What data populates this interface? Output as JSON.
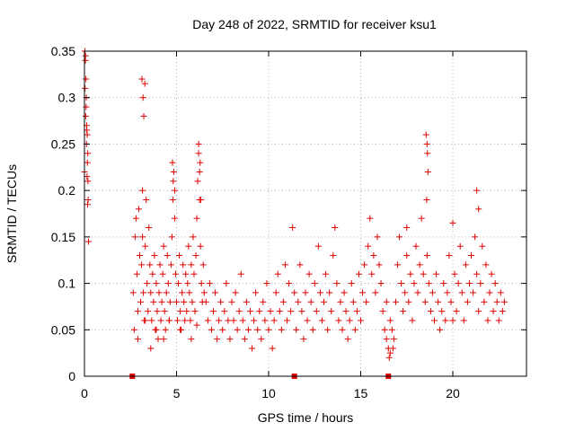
{
  "chart_data": {
    "type": "scatter",
    "title": "Day 248 of 2022, SRMTID for receiver ksu1",
    "xlabel": "GPS time / hours",
    "ylabel": "SRMTID / TECUs",
    "xlim": [
      0,
      24
    ],
    "ylim": [
      0,
      0.35
    ],
    "xticks": [
      0,
      5,
      10,
      15,
      20
    ],
    "xtick_labels": [
      "0",
      "5",
      "10",
      "15",
      "20"
    ],
    "yticks": [
      0,
      0.05,
      0.1,
      0.15,
      0.2,
      0.25,
      0.3,
      0.35
    ],
    "ytick_labels": [
      "0",
      "0.05",
      "0.1",
      "0.15",
      "0.2",
      "0.25",
      "0.3",
      "0.35"
    ],
    "grid": true,
    "marker": "plus",
    "color": "#e00000",
    "series": [
      {
        "name": "SRMTID",
        "x": [
          0.0,
          0.02,
          0.05,
          0.08,
          0.1,
          0.12,
          0.15,
          0.18,
          0.2,
          0.22,
          0.03,
          0.07,
          0.11,
          0.14,
          0.17,
          0.06,
          0.09,
          0.13,
          0.16,
          0.19,
          2.65,
          2.7,
          2.75,
          2.8,
          2.85,
          2.9,
          2.95,
          3.0,
          3.05,
          3.1,
          3.15,
          3.2,
          3.25,
          3.3,
          3.35,
          3.4,
          3.45,
          3.5,
          3.55,
          3.6,
          3.65,
          3.7,
          3.75,
          3.8,
          3.85,
          3.9,
          3.95,
          4.0,
          4.05,
          4.1,
          4.15,
          4.2,
          4.25,
          4.3,
          4.35,
          4.4,
          4.45,
          4.5,
          4.55,
          4.6,
          4.65,
          4.7,
          4.75,
          4.8,
          4.85,
          4.9,
          4.95,
          5.0,
          5.05,
          5.1,
          5.15,
          5.2,
          5.25,
          5.3,
          5.35,
          5.4,
          5.45,
          5.5,
          5.55,
          5.6,
          5.65,
          5.7,
          5.75,
          5.8,
          5.85,
          5.9,
          5.95,
          6.0,
          6.05,
          6.1,
          6.15,
          6.2,
          6.25,
          6.3,
          6.35,
          6.4,
          6.45,
          6.5,
          3.12,
          3.18,
          3.22,
          3.28,
          3.15,
          4.78,
          4.82,
          4.9,
          6.2,
          6.28,
          6.32,
          6.25,
          2.9,
          3.3,
          3.6,
          3.9,
          4.3,
          4.6,
          5.2,
          5.8,
          6.1
        ],
        "y": [
          0.22,
          0.35,
          0.34,
          0.32,
          0.3,
          0.27,
          0.26,
          0.24,
          0.19,
          0.145,
          0.31,
          0.28,
          0.25,
          0.215,
          0.185,
          0.345,
          0.29,
          0.265,
          0.23,
          0.21,
          0.09,
          0.05,
          0.15,
          0.17,
          0.11,
          0.07,
          0.18,
          0.13,
          0.08,
          0.12,
          0.15,
          0.09,
          0.06,
          0.14,
          0.19,
          0.1,
          0.07,
          0.16,
          0.12,
          0.09,
          0.06,
          0.11,
          0.08,
          0.13,
          0.05,
          0.1,
          0.07,
          0.04,
          0.09,
          0.12,
          0.06,
          0.08,
          0.11,
          0.14,
          0.07,
          0.05,
          0.09,
          0.13,
          0.1,
          0.06,
          0.08,
          0.12,
          0.15,
          0.19,
          0.22,
          0.17,
          0.11,
          0.08,
          0.06,
          0.1,
          0.13,
          0.07,
          0.05,
          0.09,
          0.12,
          0.08,
          0.06,
          0.11,
          0.07,
          0.1,
          0.14,
          0.09,
          0.06,
          0.12,
          0.08,
          0.15,
          0.11,
          0.07,
          0.13,
          0.17,
          0.21,
          0.24,
          0.19,
          0.14,
          0.1,
          0.08,
          0.12,
          0.09,
          0.32,
          0.3,
          0.28,
          0.315,
          0.2,
          0.23,
          0.21,
          0.2,
          0.25,
          0.23,
          0.19,
          0.22,
          0.04,
          0.06,
          0.03,
          0.05,
          0.04,
          0.06,
          0.05,
          0.04,
          0.055
        ],
        "x2": [
          6.6,
          6.7,
          6.8,
          6.9,
          7.0,
          7.1,
          7.2,
          7.3,
          7.4,
          7.5,
          7.6,
          7.7,
          7.8,
          7.9,
          8.0,
          8.1,
          8.2,
          8.3,
          8.4,
          8.5,
          8.6,
          8.7,
          8.8,
          8.9,
          9.0,
          9.1,
          9.2,
          9.3,
          9.4,
          9.5,
          9.6,
          9.7,
          9.8,
          9.9,
          10.0,
          10.1,
          10.2,
          10.3,
          10.4,
          10.5,
          10.6,
          10.7,
          10.8,
          10.9,
          11.0,
          11.1,
          11.2,
          11.3,
          11.4,
          11.5,
          11.6,
          11.7,
          11.8,
          11.9,
          12.0,
          12.1,
          12.2,
          12.3,
          12.4,
          12.5,
          12.6,
          12.7,
          12.8,
          12.9,
          13.0,
          13.1,
          13.2,
          13.3,
          13.4,
          13.5,
          13.6,
          13.7,
          13.8,
          13.9,
          14.0,
          14.1,
          14.2,
          14.3,
          14.4,
          14.5,
          14.6,
          14.7,
          14.8,
          14.9,
          15.0,
          15.1,
          15.2,
          15.3,
          15.4,
          15.5,
          15.6,
          15.7,
          15.8,
          15.9,
          16.0,
          16.1,
          16.2,
          16.3,
          16.4
        ],
        "y2": [
          0.08,
          0.06,
          0.1,
          0.05,
          0.07,
          0.09,
          0.04,
          0.06,
          0.08,
          0.05,
          0.07,
          0.1,
          0.06,
          0.04,
          0.08,
          0.06,
          0.09,
          0.05,
          0.07,
          0.11,
          0.06,
          0.04,
          0.08,
          0.05,
          0.07,
          0.03,
          0.06,
          0.09,
          0.05,
          0.07,
          0.04,
          0.08,
          0.06,
          0.1,
          0.05,
          0.07,
          0.03,
          0.06,
          0.09,
          0.11,
          0.07,
          0.05,
          0.08,
          0.12,
          0.06,
          0.1,
          0.07,
          0.16,
          0.09,
          0.05,
          0.08,
          0.12,
          0.07,
          0.04,
          0.09,
          0.06,
          0.11,
          0.08,
          0.05,
          0.1,
          0.07,
          0.14,
          0.09,
          0.06,
          0.08,
          0.11,
          0.05,
          0.09,
          0.07,
          0.13,
          0.16,
          0.1,
          0.06,
          0.08,
          0.05,
          0.09,
          0.07,
          0.04,
          0.06,
          0.1,
          0.08,
          0.05,
          0.07,
          0.11,
          0.06,
          0.09,
          0.12,
          0.08,
          0.14,
          0.17,
          0.11,
          0.13,
          0.09,
          0.15,
          0.12,
          0.1,
          0.07,
          0.05,
          0.08
        ],
        "x3": [
          16.4,
          16.5,
          16.6,
          16.7,
          16.8,
          16.9,
          17.0,
          17.1,
          17.2,
          17.3,
          17.4,
          17.5,
          17.6,
          17.7,
          17.8,
          17.9,
          18.0,
          18.1,
          18.2,
          18.3,
          18.4,
          18.5,
          18.6,
          18.7,
          18.8,
          18.9,
          19.0,
          19.1,
          19.2,
          19.3,
          19.4,
          19.5,
          19.6,
          19.7,
          19.8,
          19.9,
          20.0,
          20.1,
          20.2,
          20.3,
          20.4,
          20.5,
          20.6,
          20.7,
          20.8,
          20.9,
          21.0,
          21.1,
          21.2,
          21.3,
          21.4,
          21.5,
          21.6,
          21.7,
          21.8,
          21.9,
          22.0,
          22.1,
          22.2,
          22.3,
          22.4,
          22.5,
          22.6,
          22.7,
          22.8,
          18.55,
          18.6,
          18.62,
          18.65,
          18.58,
          21.3,
          21.4,
          20.0,
          17.5,
          16.55,
          16.6,
          16.75
        ],
        "y3": [
          0.04,
          0.03,
          0.06,
          0.05,
          0.04,
          0.08,
          0.12,
          0.15,
          0.1,
          0.07,
          0.09,
          0.13,
          0.08,
          0.11,
          0.06,
          0.1,
          0.14,
          0.09,
          0.12,
          0.17,
          0.11,
          0.08,
          0.13,
          0.1,
          0.07,
          0.09,
          0.06,
          0.11,
          0.08,
          0.05,
          0.07,
          0.1,
          0.06,
          0.09,
          0.13,
          0.08,
          0.06,
          0.11,
          0.07,
          0.1,
          0.14,
          0.09,
          0.06,
          0.12,
          0.08,
          0.1,
          0.13,
          0.09,
          0.15,
          0.11,
          0.07,
          0.1,
          0.14,
          0.08,
          0.12,
          0.06,
          0.09,
          0.11,
          0.07,
          0.1,
          0.08,
          0.06,
          0.09,
          0.07,
          0.08,
          0.26,
          0.25,
          0.24,
          0.22,
          0.19,
          0.2,
          0.18,
          0.165,
          0.16,
          0.02,
          0.025,
          0.03
        ]
      }
    ],
    "zero_markers_x": [
      2.6,
      11.4,
      16.5
    ]
  }
}
